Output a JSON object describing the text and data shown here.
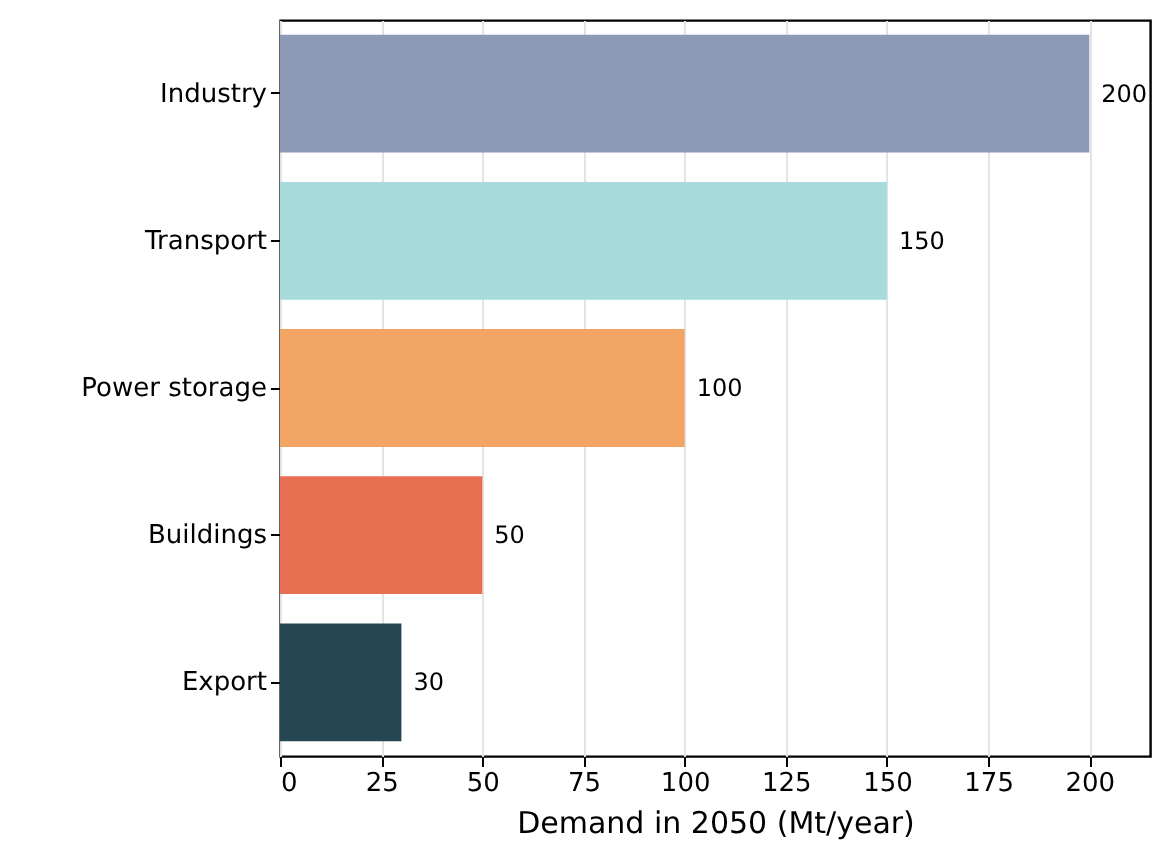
{
  "chart_data": {
    "type": "bar",
    "orientation": "horizontal",
    "xlabel": "Demand in 2050 (Mt/year)",
    "categories": [
      "Industry",
      "Transport",
      "Power storage",
      "Buildings",
      "Export"
    ],
    "values": [
      200,
      150,
      100,
      50,
      30
    ],
    "colors": [
      "#8c9ab5",
      "#a8dcdc",
      "#f2a464",
      "#e76f51",
      "#264653"
    ],
    "xlim": [
      0,
      215
    ],
    "xticks": [
      0,
      25,
      50,
      75,
      100,
      125,
      150,
      175,
      200
    ],
    "grid": "x",
    "data_labels": true
  }
}
